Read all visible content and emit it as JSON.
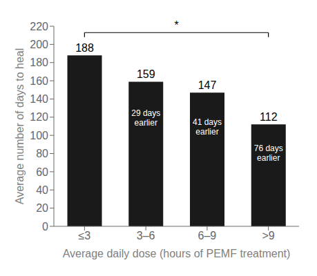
{
  "chart_data": {
    "type": "bar",
    "categories": [
      "≤3",
      "3–6",
      "6–9",
      ">9"
    ],
    "values": [
      188,
      159,
      147,
      112
    ],
    "color": "#1a1a1a",
    "xlabel": "Average daily dose (hours of PEMF treatment)",
    "ylabel": "Average number of days to heal",
    "ylim": [
      0,
      220
    ],
    "yticks": [
      0,
      20,
      40,
      60,
      80,
      100,
      120,
      140,
      160,
      180,
      200,
      220
    ],
    "grid": false,
    "data_labels": true,
    "annotations": [
      {
        "category": "3–6",
        "text": "29 days\nearlier"
      },
      {
        "category": "6–9",
        "text": "41 days\nearlier"
      },
      {
        "category": ">9",
        "text": "76 days\nearlier"
      },
      {
        "text": "*",
        "from": "≤3",
        "to": ">9",
        "y": 213,
        "drop": 5
      }
    ]
  }
}
